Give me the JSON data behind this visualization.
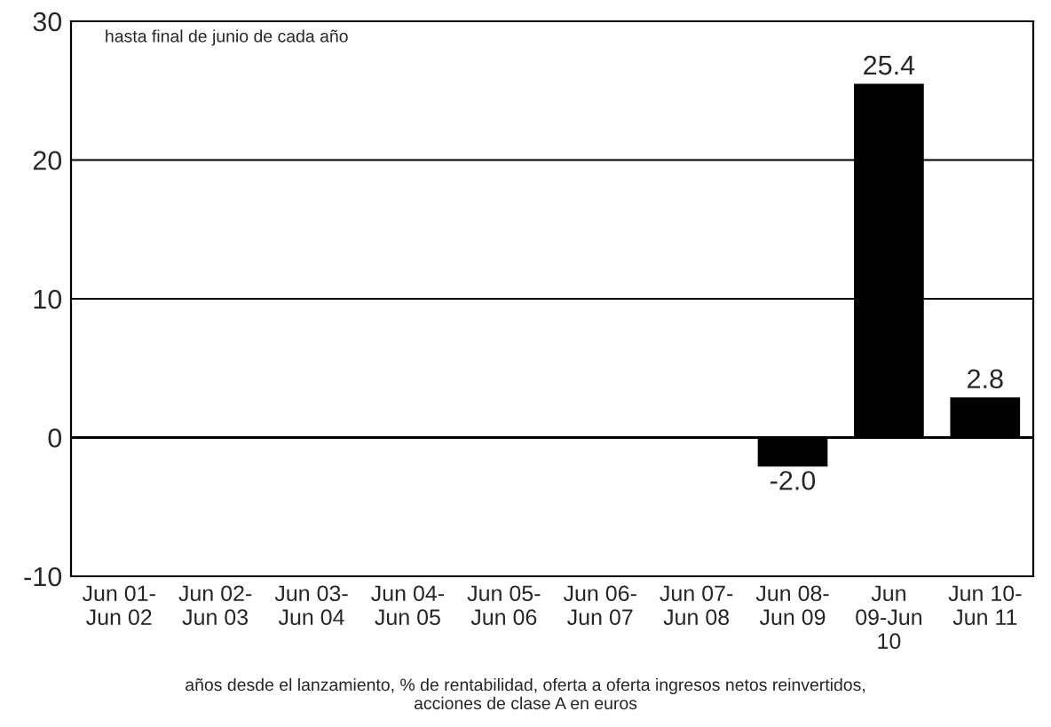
{
  "chart_data": {
    "type": "bar",
    "categories": [
      "Jun 01-\nJun 02",
      "Jun 02-\nJun 03",
      "Jun 03-\nJun 04",
      "Jun 04-\nJun 05",
      "Jun 05-\nJun 06",
      "Jun 06-\nJun 07",
      "Jun 07-\nJun 08",
      "Jun 08-\nJun 09",
      "Jun\n09-Jun\n10",
      "Jun 10-\nJun 11"
    ],
    "values": [
      null,
      null,
      null,
      null,
      null,
      null,
      null,
      -2.0,
      25.4,
      2.8
    ],
    "value_labels": [
      null,
      null,
      null,
      null,
      null,
      null,
      null,
      "-2.0",
      "25.4",
      "2.8"
    ],
    "color": "#000000",
    "ylim": [
      -10,
      30
    ],
    "yticks": [
      -10,
      0,
      10,
      20,
      30
    ],
    "grid": "y",
    "ref_lines": [
      {
        "axis": "y",
        "value": 0,
        "color": "#000000"
      }
    ],
    "annotations": [
      "hasta final de junio de cada año",
      "años desde el lanzamiento, % de rentabilidad, oferta a oferta ingresos netos reinvertidos,\nacciones de clase A en euros"
    ]
  }
}
